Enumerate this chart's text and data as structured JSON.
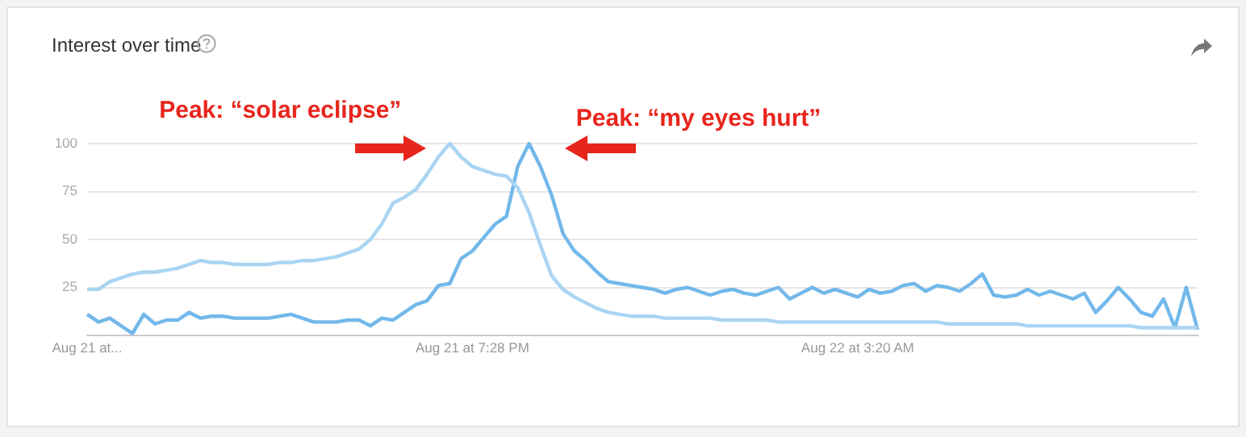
{
  "chart_data": {
    "type": "line",
    "title": "Interest over time",
    "categories": [
      "Aug 21 at...",
      null,
      null,
      null,
      null,
      null,
      null,
      null,
      null,
      null,
      null,
      null,
      null,
      null,
      null,
      null,
      null,
      null,
      null,
      null,
      null,
      null,
      null,
      null,
      null,
      null,
      null,
      null,
      null,
      null,
      null,
      null,
      null,
      null,
      "Aug 21 at 7:28 PM",
      null,
      null,
      null,
      null,
      null,
      null,
      null,
      null,
      null,
      null,
      null,
      null,
      null,
      null,
      null,
      null,
      null,
      null,
      null,
      null,
      null,
      null,
      null,
      null,
      null,
      null,
      null,
      null,
      null,
      null,
      null,
      null,
      null,
      "Aug 22 at 3:20 AM",
      null,
      null,
      null,
      null,
      null,
      null,
      null,
      null,
      null,
      null,
      null,
      null,
      null,
      null,
      null,
      null,
      null,
      null,
      null,
      null,
      null,
      null,
      null,
      null,
      null,
      null,
      null,
      null,
      null,
      null
    ],
    "series": [
      {
        "color": "#a9d5f3",
        "values": [
          24,
          24,
          28,
          30,
          32,
          33,
          33,
          34,
          35,
          37,
          39,
          38,
          38,
          37,
          37,
          37,
          37,
          38,
          38,
          39,
          39,
          40,
          41,
          43,
          45,
          50,
          58,
          69,
          72,
          76,
          84,
          93,
          100,
          93,
          88,
          86,
          84,
          83,
          77,
          64,
          47,
          31,
          24,
          20,
          17,
          14,
          12,
          11,
          10,
          10,
          10,
          9,
          9,
          9,
          9,
          9,
          8,
          8,
          8,
          8,
          8,
          7,
          7,
          7,
          7,
          7,
          7,
          7,
          7,
          7,
          7,
          7,
          7,
          7,
          7,
          7,
          6,
          6,
          6,
          6,
          6,
          6,
          6,
          5,
          5,
          5,
          5,
          5,
          5,
          5,
          5,
          5,
          5,
          4,
          4,
          4,
          4,
          4,
          4
        ]
      },
      {
        "color": "#72b8ea",
        "values": [
          11,
          7,
          9,
          5,
          1,
          11,
          6,
          8,
          8,
          12,
          9,
          10,
          10,
          9,
          9,
          9,
          9,
          10,
          11,
          9,
          7,
          7,
          7,
          8,
          8,
          5,
          9,
          8,
          12,
          16,
          18,
          26,
          27,
          40,
          44,
          51,
          58,
          62,
          88,
          100,
          88,
          73,
          53,
          44,
          39,
          33,
          28,
          27,
          26,
          25,
          24,
          22,
          24,
          25,
          23,
          21,
          23,
          24,
          22,
          21,
          23,
          25,
          19,
          22,
          25,
          22,
          24,
          22,
          20,
          24,
          22,
          23,
          26,
          27,
          23,
          26,
          25,
          23,
          27,
          32,
          21,
          20,
          21,
          24,
          21,
          23,
          21,
          19,
          22,
          12,
          18,
          25,
          19,
          12,
          10,
          19,
          4,
          25,
          3
        ]
      }
    ],
    "ylim": [
      0,
      100
    ],
    "yticks": [
      25,
      50,
      75,
      100
    ],
    "grid": "y",
    "legend": false,
    "marker": "none",
    "line_style": "solid",
    "annotations": [
      "Peak: “solar eclipse”",
      "Peak: “my eyes hurt”"
    ]
  }
}
